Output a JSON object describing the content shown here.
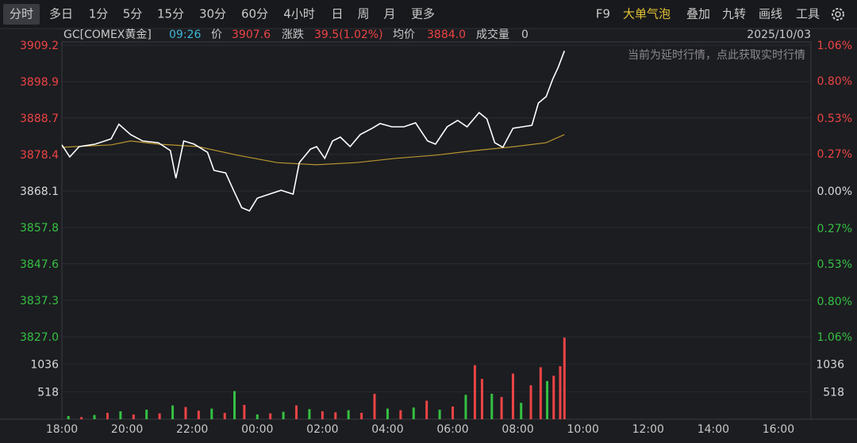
{
  "toolbar": {
    "left": [
      "分时",
      "多日",
      "1分",
      "5分",
      "15分",
      "30分",
      "60分",
      "4小时",
      "日",
      "周",
      "月",
      "更多"
    ],
    "right": [
      "F9",
      "大单气泡",
      "叠加",
      "九转",
      "画线",
      "工具"
    ]
  },
  "info": {
    "symbol": "GC[COMEX黄金]",
    "time": "09:26",
    "price_label": "价",
    "price": "3907.6",
    "change_label": "涨跌",
    "change": "39.5(1.02%)",
    "avg_label": "均价",
    "avg": "3884.0",
    "volume_label": "成交量",
    "volume": "0",
    "date": "2025/10/03",
    "notice": "当前为延时行情，点此获取实时行情"
  },
  "chart_data": [
    {
      "type": "line",
      "xlim": [
        0,
        23
      ],
      "ylim": [
        3827.0,
        3909.2
      ],
      "yticks": [
        3909.2,
        3898.9,
        3888.7,
        3878.4,
        3868.1,
        3857.8,
        3847.6,
        3837.3,
        {
          "value": 3827,
          "label": "3827.0"
        }
      ],
      "y2lim": [
        -1.06,
        1.06
      ],
      "y2ticks": [
        {
          "value": 1.06,
          "label": "1.06%"
        },
        {
          "value": 0.8,
          "label": "0.80%"
        },
        {
          "value": 0.53,
          "label": "0.53%"
        },
        {
          "value": 0.27,
          "label": "0.27%"
        },
        {
          "value": 0,
          "label": "0.00%"
        },
        {
          "value": -0.27,
          "label": "0.27%"
        },
        {
          "value": -0.53,
          "label": "0.53%"
        },
        {
          "value": -0.8,
          "label": "0.80%"
        },
        {
          "value": -1.06,
          "label": "1.06%"
        }
      ],
      "grid": true,
      "up_color": "#ec4444",
      "down_color": "#35c042",
      "flat_color": "#d8d8d8",
      "series": [
        {
          "color": "#ffffff",
          "x": [
            0,
            0.24,
            0.53,
            1.02,
            1.51,
            1.75,
            2.11,
            2.48,
            2.96,
            3.33,
            3.5,
            3.74,
            4.06,
            4.47,
            4.67,
            5.03,
            5.27,
            5.52,
            5.76,
            6.0,
            6.37,
            6.73,
            7.1,
            7.29,
            7.63,
            7.82,
            8.07,
            8.31,
            8.55,
            8.85,
            9.16,
            9.53,
            9.77,
            10.13,
            10.5,
            10.86,
            11.23,
            11.47,
            11.83,
            12.15,
            12.44,
            12.81,
            13.05,
            13.29,
            13.54,
            13.85,
            14.14,
            14.43,
            14.63,
            14.87,
            15.07,
            15.24,
            15.43
          ],
          "values": [
            3881.1,
            3877.7,
            3880.6,
            3881.3,
            3882.8,
            3886.9,
            3884.0,
            3882.2,
            3881.7,
            3879.5,
            3871.7,
            3882.2,
            3881.3,
            3879.0,
            3873.9,
            3873.2,
            3868.3,
            3863.4,
            3862.5,
            3866.1,
            3867.2,
            3868.3,
            3867.2,
            3876.1,
            3879.9,
            3880.6,
            3877.3,
            3882.2,
            3883.3,
            3880.6,
            3884.0,
            3885.8,
            3887.1,
            3886.2,
            3886.2,
            3887.3,
            3882.2,
            3881.3,
            3886.2,
            3888.0,
            3886.2,
            3890.2,
            3888.4,
            3881.7,
            3880.4,
            3885.8,
            3886.2,
            3886.6,
            3892.9,
            3894.7,
            3899.6,
            3903.0,
            3907.6
          ]
        },
        {
          "color": "#b8962e",
          "x": [
            0,
            1.51,
            2.11,
            2.96,
            4.18,
            5.39,
            6.61,
            7.82,
            9.04,
            10.25,
            11.47,
            12.68,
            13.9,
            14.87,
            15.43
          ],
          "values": [
            3880.4,
            3881.1,
            3882.2,
            3881.3,
            3880.6,
            3878.2,
            3876.1,
            3875.5,
            3876.1,
            3877.3,
            3878.2,
            3879.5,
            3880.6,
            3881.7,
            3884.0
          ]
        }
      ]
    },
    {
      "type": "bar",
      "xlim": [
        0,
        23
      ],
      "xticks": [
        {
          "value": 0,
          "label": "18:00"
        },
        {
          "value": 2,
          "label": "20:00"
        },
        {
          "value": 4,
          "label": "22:00"
        },
        {
          "value": 6,
          "label": "00:00"
        },
        {
          "value": 8,
          "label": "02:00"
        },
        {
          "value": 10,
          "label": "04:00"
        },
        {
          "value": 12,
          "label": "06:00"
        },
        {
          "value": 14,
          "label": "08:00"
        },
        {
          "value": 16,
          "label": "10:00"
        },
        {
          "value": 18,
          "label": "12:00"
        },
        {
          "value": 20,
          "label": "14:00"
        },
        {
          "value": 22,
          "label": "16:00"
        }
      ],
      "ylim": [
        0,
        1554
      ],
      "yticks": [
        1036,
        518
      ],
      "x": [
        0.2,
        0.6,
        1.0,
        1.4,
        1.8,
        2.2,
        2.6,
        3.0,
        3.4,
        3.8,
        4.2,
        4.6,
        5.0,
        5.3,
        5.6,
        6.0,
        6.4,
        6.8,
        7.2,
        7.6,
        8.0,
        8.4,
        8.8,
        9.2,
        9.6,
        10.0,
        10.4,
        10.8,
        11.2,
        11.6,
        12.0,
        12.4,
        12.68,
        12.9,
        13.2,
        13.5,
        13.85,
        14.1,
        14.4,
        14.7,
        14.9,
        15.1,
        15.3,
        15.43
      ],
      "values": [
        60,
        40,
        80,
        120,
        150,
        90,
        180,
        110,
        260,
        230,
        160,
        200,
        120,
        530,
        270,
        90,
        110,
        140,
        260,
        190,
        150,
        130,
        170,
        120,
        480,
        200,
        170,
        220,
        350,
        180,
        240,
        460,
        1020,
        760,
        480,
        420,
        860,
        310,
        640,
        980,
        720,
        820,
        1000,
        1540
      ],
      "colors": [
        "#35c042",
        "#ec4444",
        "#35c042",
        "#ec4444",
        "#35c042",
        "#ec4444",
        "#35c042",
        "#ec4444",
        "#35c042",
        "#ec4444",
        "#ec4444",
        "#35c042",
        "#ec4444",
        "#35c042",
        "#ec4444",
        "#35c042",
        "#ec4444",
        "#35c042",
        "#ec4444",
        "#35c042",
        "#ec4444",
        "#ec4444",
        "#35c042",
        "#ec4444",
        "#ec4444",
        "#35c042",
        "#ec4444",
        "#35c042",
        "#ec4444",
        "#35c042",
        "#ec4444",
        "#35c042",
        "#ec4444",
        "#ec4444",
        "#35c042",
        "#ec4444",
        "#ec4444",
        "#35c042",
        "#ec4444",
        "#ec4444",
        "#35c042",
        "#ec4444",
        "#ec4444",
        "#ec4444"
      ]
    }
  ]
}
